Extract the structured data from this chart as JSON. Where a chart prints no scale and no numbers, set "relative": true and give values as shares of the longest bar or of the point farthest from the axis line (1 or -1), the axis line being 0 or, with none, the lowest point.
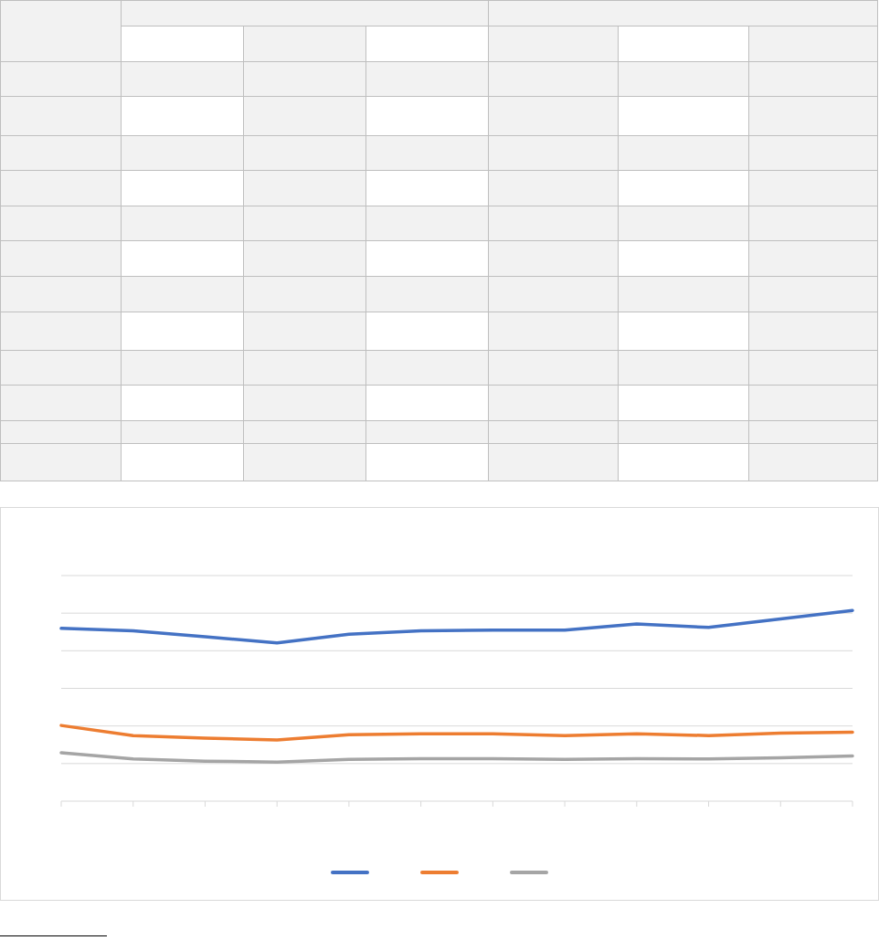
{
  "chart_data": {
    "type": "line",
    "relative": true,
    "categories": [
      null,
      null,
      null,
      null,
      null,
      null,
      null,
      null,
      null,
      null,
      null,
      null
    ],
    "series": [
      {
        "color": "#4472c4",
        "values": [
          0.906,
          0.893,
          0.862,
          0.83,
          0.875,
          0.893,
          0.897,
          0.897,
          0.929,
          0.911,
          0.955,
          1
        ]
      },
      {
        "color": "#ed7d31",
        "values": [
          0.397,
          0.344,
          0.33,
          0.321,
          0.348,
          0.353,
          0.353,
          0.344,
          0.353,
          0.344,
          0.357,
          0.362
        ]
      },
      {
        "color": "#a5a5a5",
        "values": [
          0.254,
          0.221,
          0.21,
          0.205,
          0.219,
          0.223,
          0.223,
          0.219,
          0.223,
          0.221,
          0.228,
          0.237
        ]
      }
    ],
    "grid": "y",
    "marker": "none",
    "line_style": "solid"
  }
}
